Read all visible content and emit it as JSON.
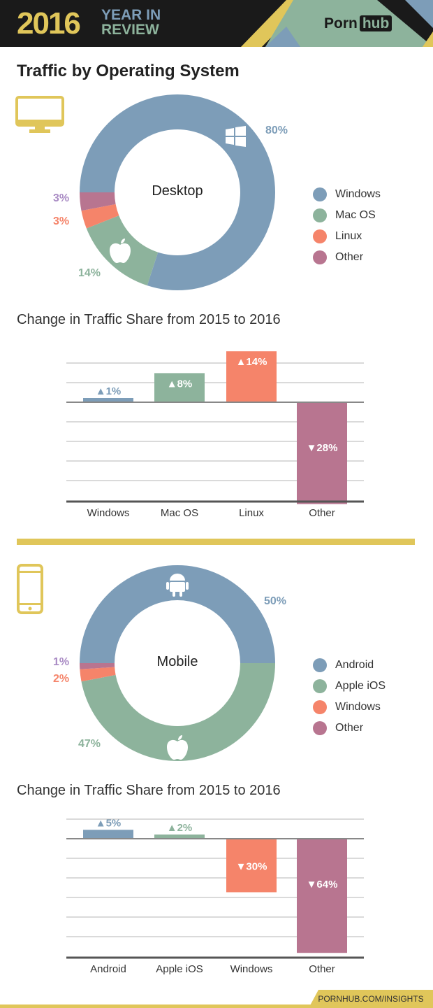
{
  "header": {
    "year": "2016",
    "year_in": "YEAR IN",
    "review": "REVIEW",
    "logo_porn": "Porn",
    "logo_hub": "hub"
  },
  "title": "Traffic by Operating System",
  "colors": {
    "blue": "#7d9db8",
    "green": "#8db39c",
    "orange": "#f5846a",
    "pink": "#b87590",
    "purple": "#a98bc4",
    "yellow": "#e0c65a"
  },
  "footer": "PORNHUB.COM/INSIGHTS",
  "chart_data": [
    {
      "type": "pie",
      "title": "Desktop",
      "donut": true,
      "categories": [
        "Windows",
        "Mac OS",
        "Linux",
        "Other"
      ],
      "values": [
        80,
        14,
        3,
        3
      ],
      "labels": [
        "80%",
        "14%",
        "3%",
        "3%"
      ],
      "legend": "right"
    },
    {
      "type": "bar",
      "title": "Change in Traffic Share from 2015 to 2016",
      "categories": [
        "Windows",
        "Mac OS",
        "Linux",
        "Other"
      ],
      "values": [
        1,
        8,
        14,
        -28
      ],
      "labels": [
        "▲1%",
        "▲8%",
        "▲14%",
        "▼28%"
      ],
      "grid": true
    },
    {
      "type": "pie",
      "title": "Mobile",
      "donut": true,
      "categories": [
        "Android",
        "Apple iOS",
        "Windows",
        "Other"
      ],
      "values": [
        50,
        47,
        2,
        1
      ],
      "labels": [
        "50%",
        "47%",
        "2%",
        "1%"
      ],
      "legend": "right"
    },
    {
      "type": "bar",
      "title": "Change in Traffic Share from 2015 to 2016",
      "categories": [
        "Android",
        "Apple iOS",
        "Windows",
        "Other"
      ],
      "values": [
        5,
        2,
        -30,
        -64
      ],
      "labels": [
        "▲5%",
        "▲2%",
        "▼30%",
        "▼64%"
      ],
      "grid": true
    }
  ]
}
